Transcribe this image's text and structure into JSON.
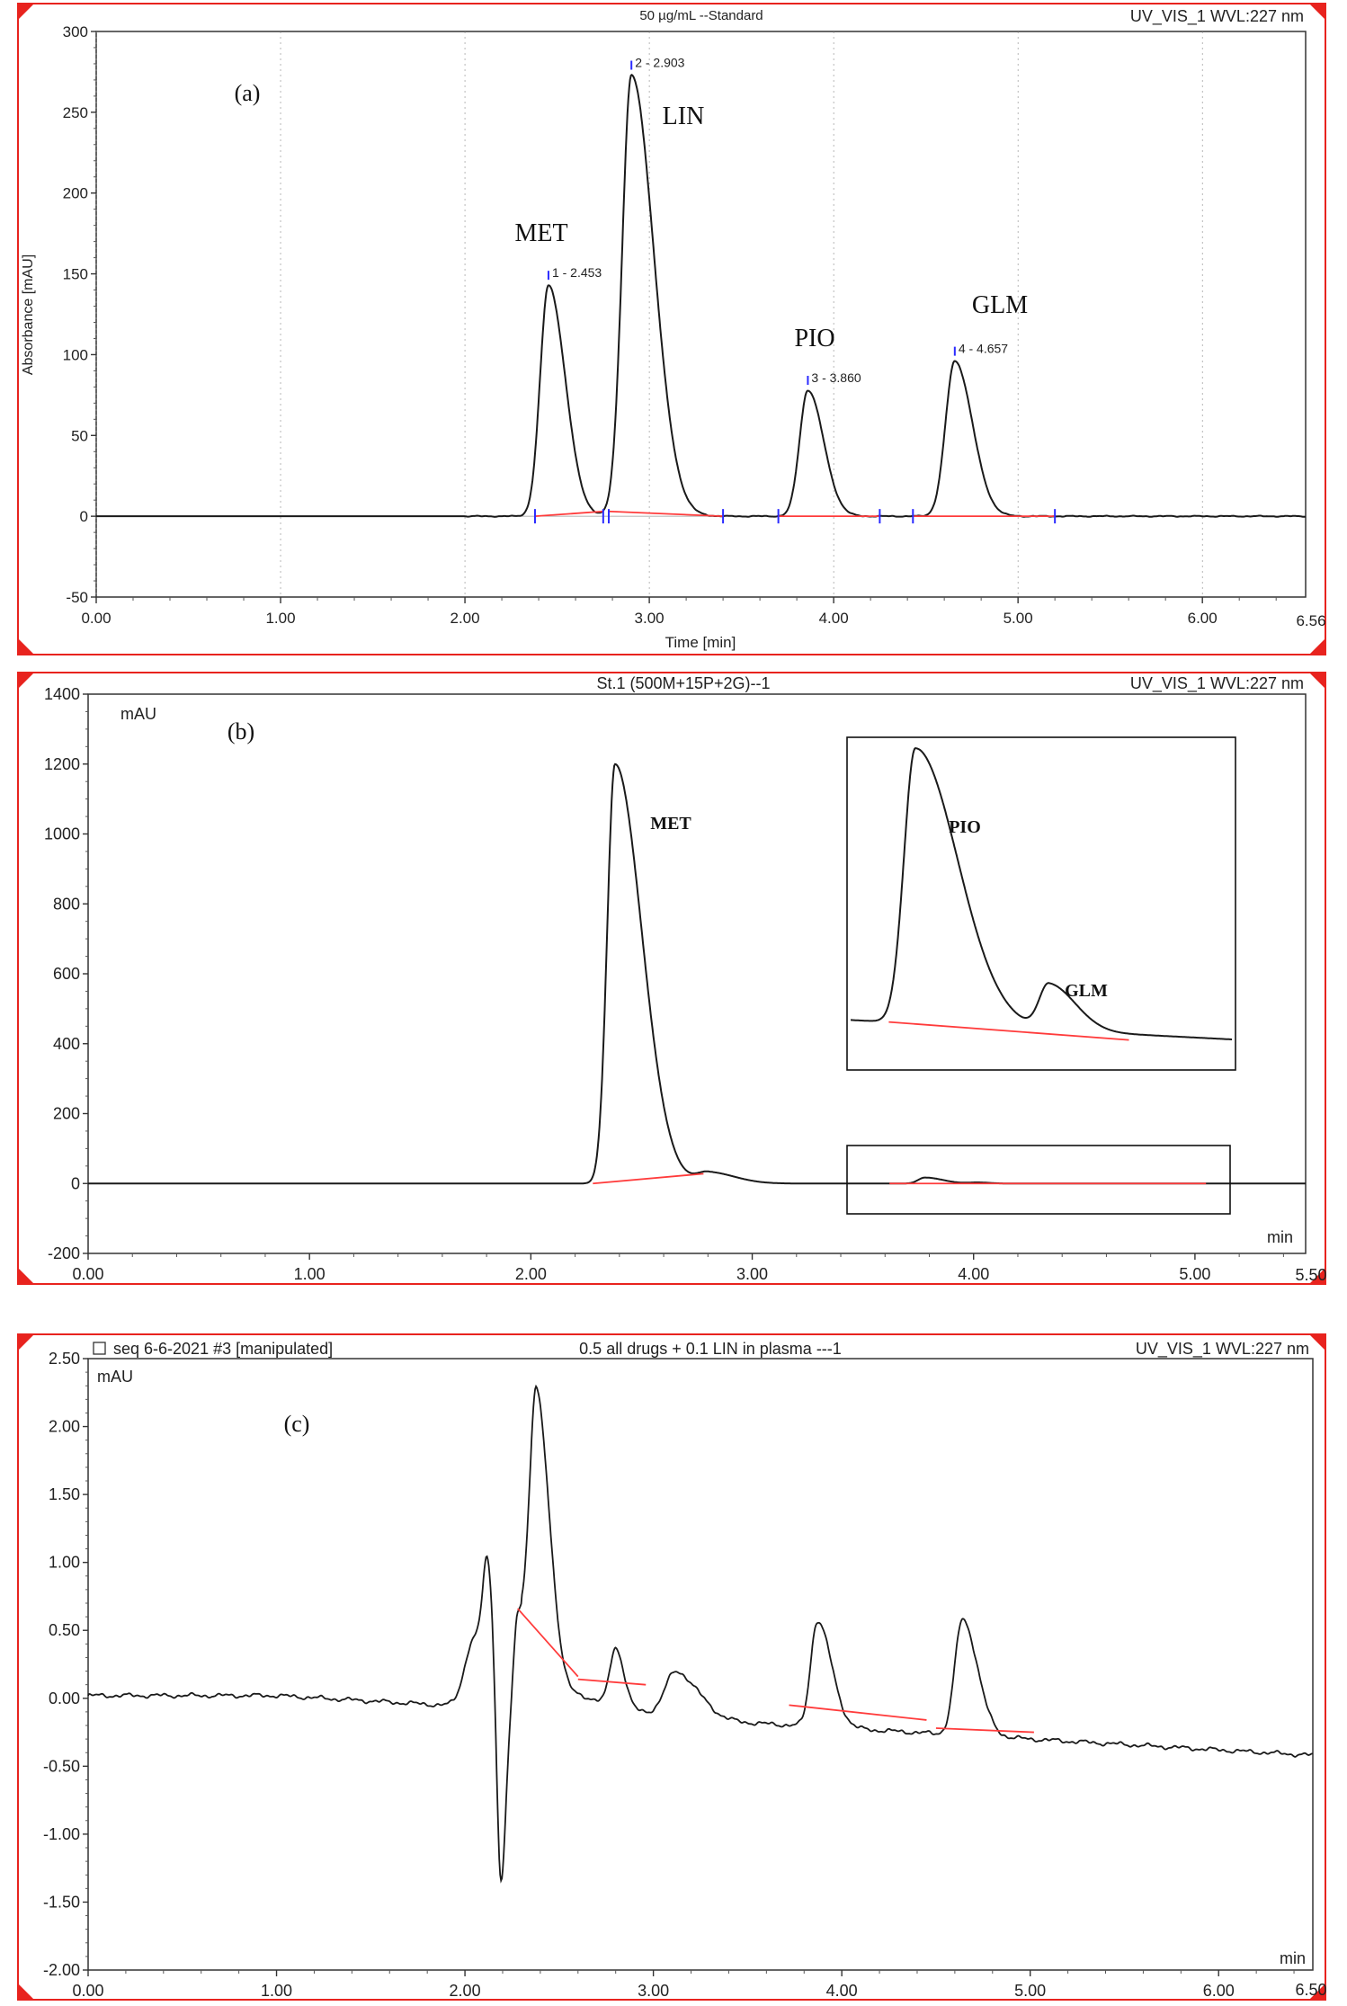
{
  "chart_data": [
    {
      "panel": "(a)",
      "type": "line",
      "title": "50 µg/mL --Standard",
      "detector": "UV_VIS_1 WVL:227 nm",
      "xlabel": "Time [min]",
      "ylabel": "Absorbance [mAU]",
      "unit_label": "",
      "xlim": [
        0,
        6.56
      ],
      "ylim": [
        -50,
        300
      ],
      "xticks": [
        0,
        1,
        2,
        3,
        4,
        5,
        6
      ],
      "xtick_labels": [
        "0.00",
        "1.00",
        "2.00",
        "3.00",
        "4.00",
        "5.00",
        "6.00"
      ],
      "xend_label": "6.56",
      "yticks": [
        -50,
        0,
        50,
        100,
        150,
        200,
        250,
        300
      ],
      "ytick_labels": [
        "-50",
        "0",
        "50",
        "100",
        "150",
        "200",
        "250",
        "300"
      ],
      "peaks": [
        {
          "t": 2.453,
          "h": 143,
          "wl": 0.045,
          "wr": 0.09,
          "ann": "1 - 2.453",
          "name": "MET"
        },
        {
          "t": 2.903,
          "h": 273,
          "wl": 0.05,
          "wr": 0.12,
          "ann": "2 - 2.903",
          "name": "LIN"
        },
        {
          "t": 3.86,
          "h": 78,
          "wl": 0.045,
          "wr": 0.085,
          "ann": "3 - 3.860",
          "name": "PIO"
        },
        {
          "t": 4.657,
          "h": 96,
          "wl": 0.05,
          "wr": 0.095,
          "ann": "4 - 4.657",
          "name": "GLM"
        }
      ],
      "baselines": [
        [
          [
            2.38,
            0
          ],
          [
            2.75,
            3
          ]
        ],
        [
          [
            2.78,
            3
          ],
          [
            3.4,
            0
          ]
        ],
        [
          [
            3.7,
            0
          ],
          [
            4.25,
            0
          ]
        ],
        [
          [
            4.43,
            0
          ],
          [
            5.2,
            0
          ]
        ]
      ],
      "markers": [
        2.38,
        2.75,
        2.78,
        3.4,
        3.7,
        4.25,
        4.43,
        5.2
      ]
    },
    {
      "panel": "(b)",
      "type": "line",
      "title": "St.1 (500M+15P+2G)--1",
      "detector": "UV_VIS_1 WVL:227 nm",
      "xlabel": "",
      "ylabel": "",
      "unit_label": "mAU",
      "x_unit_label": "min",
      "xlim": [
        0,
        5.5
      ],
      "ylim": [
        -200,
        1400
      ],
      "xticks": [
        0,
        1,
        2,
        3,
        4,
        5
      ],
      "xtick_labels": [
        "0.00",
        "1.00",
        "2.00",
        "3.00",
        "4.00",
        "5.00"
      ],
      "xend_label": "5.50",
      "yticks": [
        -200,
        0,
        200,
        400,
        600,
        800,
        1000,
        1200,
        1400
      ],
      "ytick_labels": [
        "-200",
        "0",
        "200",
        "400",
        "600",
        "800",
        "1000",
        "1200",
        "1400"
      ],
      "peaks": [
        {
          "t": 2.38,
          "h": 1200,
          "wl": 0.035,
          "wr": 0.12,
          "name": "MET"
        },
        {
          "t": 2.8,
          "h": 32,
          "wl": 0.05,
          "wr": 0.12,
          "name": ""
        },
        {
          "t": 3.78,
          "h": 17,
          "wl": 0.03,
          "wr": 0.08,
          "name": ""
        },
        {
          "t": 4.02,
          "h": 3,
          "wl": 0.04,
          "wr": 0.05,
          "name": ""
        }
      ],
      "baselines": [
        [
          [
            2.28,
            0
          ],
          [
            2.78,
            28
          ]
        ],
        [
          [
            3.62,
            0
          ],
          [
            5.05,
            0
          ]
        ]
      ],
      "inset": {
        "peaks": [
          {
            "x": 0.17,
            "h": 0.85,
            "wl": 0.03,
            "wr": 0.11,
            "name": "PIO"
          },
          {
            "x": 0.52,
            "h": 0.14,
            "wl": 0.025,
            "wr": 0.07,
            "name": "GLM"
          }
        ]
      }
    },
    {
      "panel": "(c)",
      "type": "line",
      "title": "0.5 all drugs + 0.1 LIN in plasma ---1",
      "sequence": "seq 6-6-2021 #3 [manipulated]",
      "detector": "UV_VIS_1 WVL:227 nm",
      "xlabel": "",
      "ylabel": "",
      "unit_label": "mAU",
      "x_unit_label": "min",
      "xlim": [
        0,
        6.5
      ],
      "ylim": [
        -2.0,
        2.5
      ],
      "xticks": [
        0,
        1,
        2,
        3,
        4,
        5,
        6
      ],
      "xtick_labels": [
        "0.00",
        "1.00",
        "2.00",
        "3.00",
        "4.00",
        "5.00",
        "6.00"
      ],
      "xend_label": "6.50",
      "yticks": [
        -2.0,
        -1.5,
        -1.0,
        -0.5,
        0,
        0.5,
        1.0,
        1.5,
        2.0,
        2.5
      ],
      "ytick_labels": [
        "-2.00",
        "-1.50",
        "-1.00",
        "-0.50",
        "0.00",
        "0.50",
        "1.00",
        "1.50",
        "2.00",
        "2.50"
      ],
      "drift_end": -0.42,
      "peaks": [
        {
          "t": 2.05,
          "h": 0.5,
          "wl": 0.05,
          "wr": 0.06
        },
        {
          "t": 2.12,
          "h": 0.85,
          "wl": 0.025,
          "wr": 0.03
        },
        {
          "t": 2.19,
          "h": -1.35,
          "wl": 0.02,
          "wr": 0.025
        },
        {
          "t": 2.28,
          "h": 0.68,
          "wl": 0.02,
          "wr": 0.06
        },
        {
          "t": 2.38,
          "h": 2.15,
          "wl": 0.035,
          "wr": 0.07
        },
        {
          "t": 2.8,
          "h": 0.42,
          "wl": 0.03,
          "wr": 0.045
        },
        {
          "t": 3.12,
          "h": 0.34,
          "wl": 0.06,
          "wr": 0.12
        },
        {
          "t": 3.87,
          "h": 0.78,
          "wl": 0.035,
          "wr": 0.075
        },
        {
          "t": 4.64,
          "h": 0.85,
          "wl": 0.04,
          "wr": 0.08
        }
      ],
      "baselines": [
        [
          [
            2.28,
            0.66
          ],
          [
            2.6,
            0.16
          ]
        ],
        [
          [
            2.6,
            0.14
          ],
          [
            2.96,
            0.1
          ]
        ],
        [
          [
            3.72,
            -0.05
          ],
          [
            4.45,
            -0.16
          ]
        ],
        [
          [
            4.5,
            -0.22
          ],
          [
            5.02,
            -0.25
          ]
        ]
      ],
      "extra_labels": []
    }
  ],
  "panel_a": {
    "title": "50 µg/mL --Standard",
    "detector": "UV_VIS_1 WVL:227 nm",
    "panel_label": "(a)",
    "ylabel": "Absorbance [mAU]",
    "xlabel": "Time [min]",
    "xend": "6.56",
    "names": [
      "MET",
      "LIN",
      "PIO",
      "GLM"
    ],
    "anns": [
      "1 - 2.453",
      "2 - 2.903",
      "3 - 3.860",
      "4 - 4.657"
    ]
  },
  "panel_b": {
    "title": "St.1 (500M+15P+2G)--1",
    "detector": "UV_VIS_1 WVL:227 nm",
    "panel_label": "(b)",
    "unit": "mAU",
    "xunit": "min",
    "xend": "5.50",
    "names": [
      "MET",
      "PIO",
      "GLM"
    ]
  },
  "panel_c": {
    "seq": "seq 6-6-2021 #3 [manipulated]",
    "title": "0.5 all drugs + 0.1 LIN in plasma ---1",
    "detector": "UV_VIS_1 WVL:227 nm",
    "panel_label": "(c)",
    "unit": "mAU",
    "xunit": "min",
    "xend": "6.50"
  },
  "colors": {
    "trace": "#1a1a1a",
    "baseline": "#ff3b3b",
    "marker": "#2b2bff",
    "frame_red": "#e8231e",
    "grid": "#888888"
  }
}
